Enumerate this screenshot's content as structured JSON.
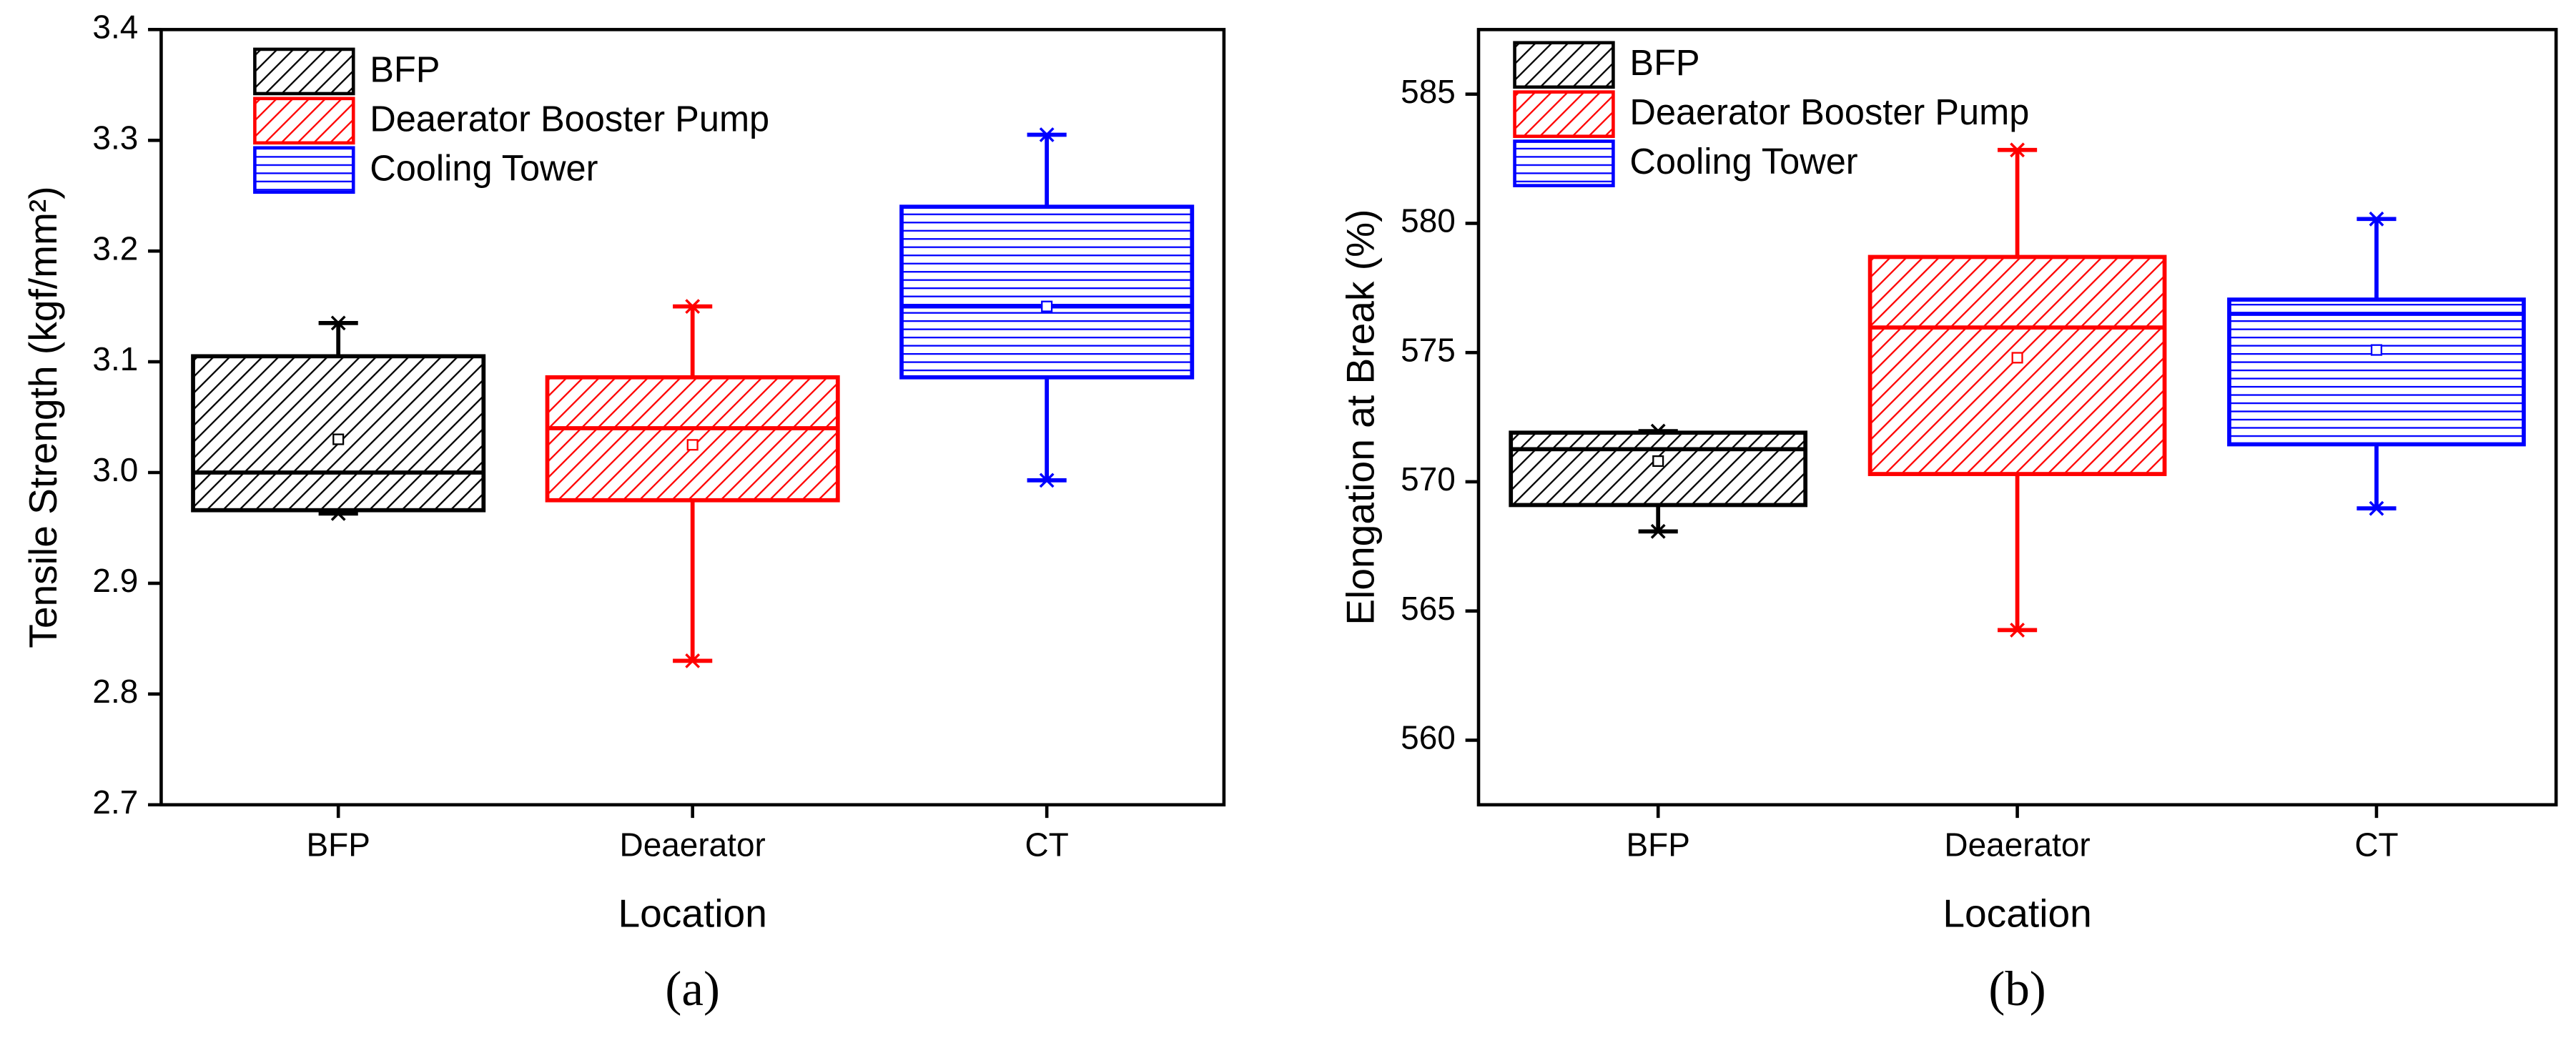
{
  "chart_data": [
    {
      "type": "box",
      "caption": "(a)",
      "x_label": "Location",
      "y_label": "Tensile Strength (kgf/mm²)",
      "categories": [
        "BFP",
        "Deaerator",
        "CT"
      ],
      "ylim": [
        2.7,
        3.4
      ],
      "yticks": [
        2.7,
        2.8,
        2.9,
        {
          "value": 3,
          "label": "3.0"
        },
        3.1,
        3.2,
        3.3,
        3.4
      ],
      "legend": "upper-left",
      "series": [
        {
          "name": "BFP",
          "color": "#000000",
          "pattern": "diagonal",
          "min": 2.963,
          "q1": 2.966,
          "median": 3.0,
          "q3": 3.105,
          "max": 3.135,
          "mean": 3.03
        },
        {
          "name": "Deaerator Booster Pump",
          "color": "#ff0000",
          "pattern": "diagonal",
          "min": 2.83,
          "q1": 2.975,
          "median": 3.04,
          "q3": 3.086,
          "max": 3.15,
          "mean": 3.025
        },
        {
          "name": "Cooling Tower",
          "color": "#0000ff",
          "pattern": "horizontal",
          "min": 2.993,
          "q1": 3.086,
          "median": 3.15,
          "q3": 3.24,
          "max": 3.305,
          "mean": 3.15
        }
      ]
    },
    {
      "type": "box",
      "caption": "(b)",
      "x_label": "Location",
      "y_label": "Elongation at Break (%)",
      "categories": [
        "BFP",
        "Deaerator",
        "CT"
      ],
      "ylim": [
        557.5,
        587.5
      ],
      "yticks": [
        560,
        565,
        570,
        575,
        580,
        585
      ],
      "legend": "upper-left",
      "series": [
        {
          "name": "BFP",
          "color": "#000000",
          "pattern": "diagonal",
          "min": 568.08,
          "q1": 569.1,
          "median": 571.26,
          "q3": 571.9,
          "max": 571.96,
          "mean": 570.8
        },
        {
          "name": "Deaerator Booster Pump",
          "color": "#ff0000",
          "pattern": "diagonal",
          "min": 564.26,
          "q1": 570.3,
          "median": 575.97,
          "q3": 578.7,
          "max": 582.84,
          "mean": 574.8
        },
        {
          "name": "Cooling Tower",
          "color": "#0000ff",
          "pattern": "horizontal",
          "min": 568.97,
          "q1": 571.45,
          "median": 576.5,
          "q3": 577.05,
          "max": 580.17,
          "mean": 575.1
        }
      ]
    }
  ]
}
